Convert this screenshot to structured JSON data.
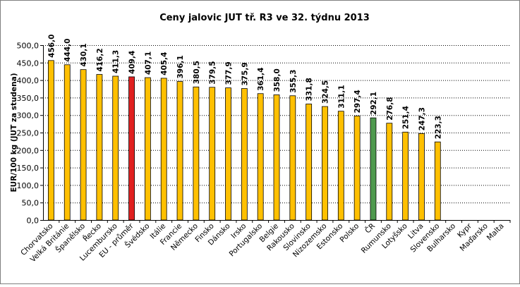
{
  "chart_data": {
    "type": "bar",
    "title": "Ceny jalovic JUT  tř. R3  ve 32. týdnu 2013",
    "ylabel": "EUR/100 kg (JUT za studena)",
    "xlabel": "",
    "ylim": [
      0,
      500
    ],
    "ytick_step": 50,
    "ytick_labels": [
      "0,0",
      "50,0",
      "100,0",
      "150,0",
      "200,0",
      "250,0",
      "300,0",
      "350,0",
      "400,0",
      "450,0",
      "500,0"
    ],
    "grid": "horizontal dotted",
    "categories": [
      "Chorvatsko",
      "Velká Británie",
      "Španělsko",
      "Řecko",
      "Lucembursko",
      "EU - průměr",
      "Švédsko",
      "Itálie",
      "Francie",
      "Německo",
      "Finsko",
      "Dánsko",
      "Irsko",
      "Portugalsko",
      "Belgie",
      "Rakousko",
      "Slovinsko",
      "Nizozemsko",
      "Estonsko",
      "Polsko",
      "ČR",
      "Rumunsko",
      "Lotyšsko",
      "Litva",
      "Slovensko",
      "Bulharsko",
      "Kypr",
      "Maďarsko",
      "Malta"
    ],
    "values": [
      456.0,
      444.0,
      430.1,
      416.2,
      411.3,
      409.4,
      407.1,
      405.4,
      396.1,
      380.5,
      379.5,
      377.9,
      375.9,
      361.4,
      358.0,
      355.3,
      331.8,
      324.5,
      311.1,
      297.4,
      292.1,
      276.8,
      251.4,
      247.3,
      223.3,
      null,
      null,
      null,
      null
    ],
    "data_labels": [
      "456,0",
      "444,0",
      "430,1",
      "416,2",
      "411,3",
      "409,4",
      "407,1",
      "405,4",
      "396,1",
      "380,5",
      "379,5",
      "377,9",
      "375,9",
      "361,4",
      "358,0",
      "355,3",
      "331,8",
      "324,5",
      "311,1",
      "297,4",
      "292,1",
      "276,8",
      "251,4",
      "247,3",
      "223,3",
      "",
      "",
      "",
      ""
    ],
    "bar_colors": {
      "default": "#FFC000",
      "EU - průměr": "#E02020",
      "ČR": "#4E9A4E"
    },
    "bar_outline": "#000000"
  }
}
